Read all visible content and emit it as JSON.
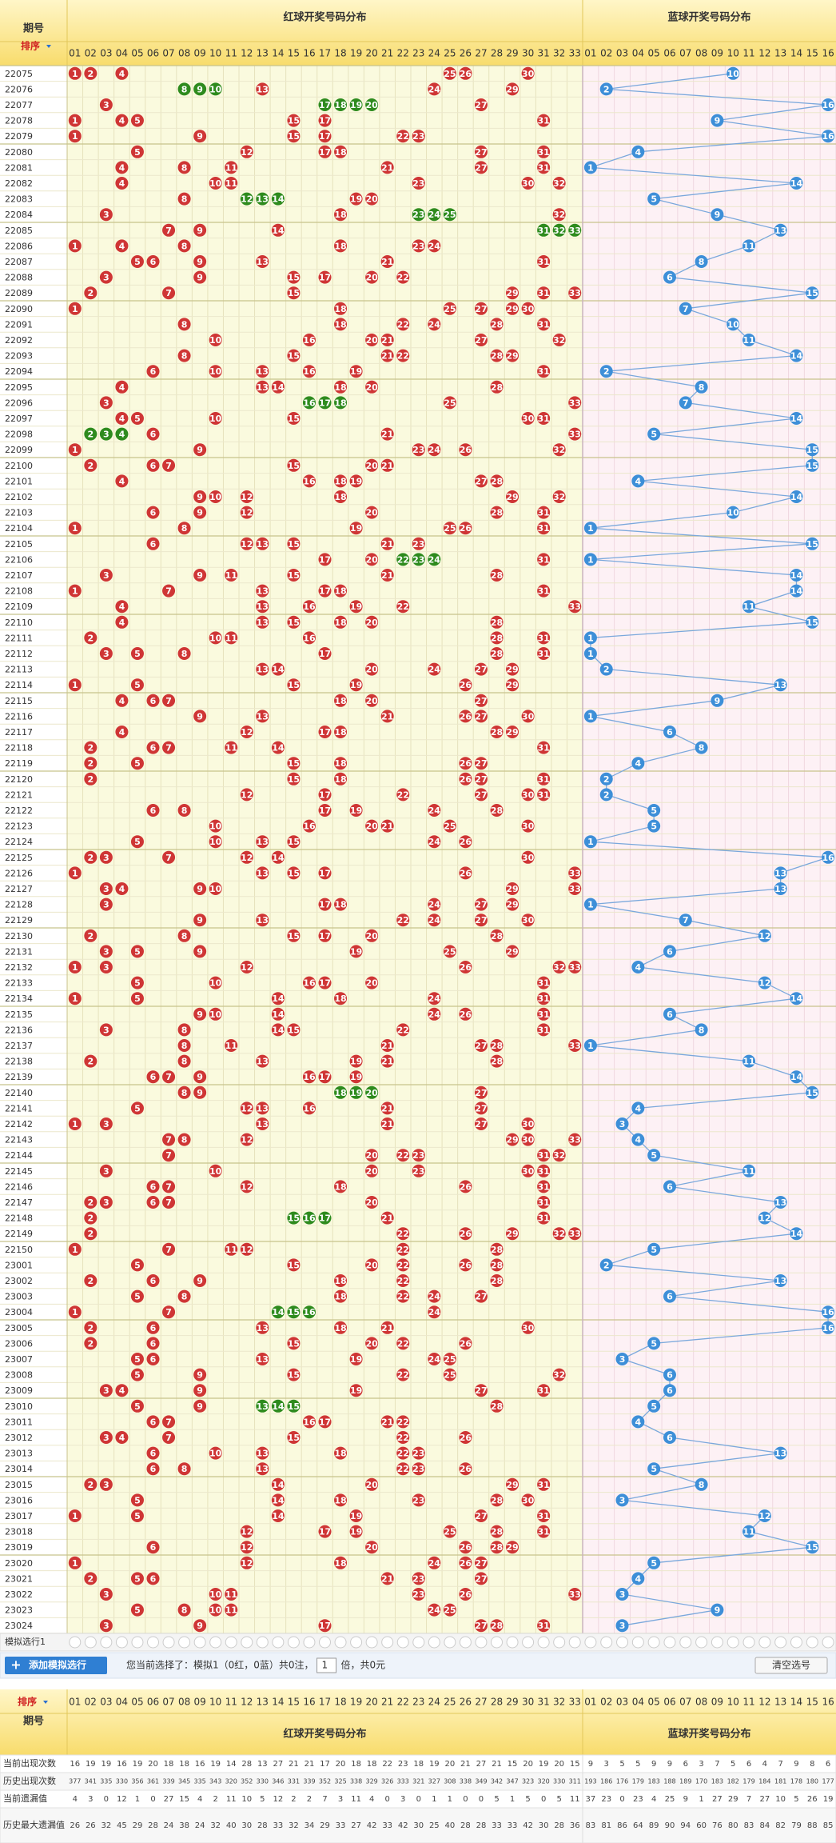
{
  "header": {
    "period_label": "期号",
    "sort_label": "排序",
    "red_title": "红球开奖号码分布",
    "blue_title": "蓝球开奖号码分布",
    "red_numbers": [
      "01",
      "02",
      "03",
      "04",
      "05",
      "06",
      "07",
      "08",
      "09",
      "10",
      "11",
      "12",
      "13",
      "14",
      "15",
      "16",
      "17",
      "18",
      "19",
      "20",
      "21",
      "22",
      "23",
      "24",
      "25",
      "26",
      "27",
      "28",
      "29",
      "30",
      "31",
      "32",
      "33"
    ],
    "blue_numbers": [
      "01",
      "02",
      "03",
      "04",
      "05",
      "06",
      "07",
      "08",
      "09",
      "10",
      "11",
      "12",
      "13",
      "14",
      "15",
      "16"
    ]
  },
  "draws": [
    {
      "period": "22075",
      "red": [
        1,
        2,
        4,
        25,
        26,
        30
      ],
      "blue": 10
    },
    {
      "period": "22076",
      "red": [
        8,
        9,
        10,
        13,
        24,
        29
      ],
      "blue": 2
    },
    {
      "period": "22077",
      "red": [
        3,
        17,
        18,
        19,
        20,
        27
      ],
      "blue": 16
    },
    {
      "period": "22078",
      "red": [
        1,
        4,
        5,
        15,
        17,
        31
      ],
      "blue": 9
    },
    {
      "period": "22079",
      "red": [
        1,
        9,
        15,
        17,
        22,
        23
      ],
      "blue": 16
    },
    {
      "period": "22080",
      "red": [
        5,
        12,
        17,
        18,
        27,
        31
      ],
      "blue": 4
    },
    {
      "period": "22081",
      "red": [
        4,
        8,
        11,
        21,
        27,
        31
      ],
      "blue": 1
    },
    {
      "period": "22082",
      "red": [
        4,
        10,
        11,
        23,
        30,
        32
      ],
      "blue": 14
    },
    {
      "period": "22083",
      "red": [
        8,
        12,
        13,
        14,
        19,
        20
      ],
      "blue": 5
    },
    {
      "period": "22084",
      "red": [
        3,
        18,
        23,
        24,
        25,
        32
      ],
      "blue": 9
    },
    {
      "period": "22085",
      "red": [
        7,
        9,
        14,
        31,
        32,
        33
      ],
      "blue": 13
    },
    {
      "period": "22086",
      "red": [
        1,
        4,
        8,
        18,
        23,
        24
      ],
      "blue": 11
    },
    {
      "period": "22087",
      "red": [
        5,
        6,
        9,
        13,
        21,
        31
      ],
      "blue": 8
    },
    {
      "period": "22088",
      "red": [
        3,
        9,
        15,
        17,
        20,
        22
      ],
      "blue": 6
    },
    {
      "period": "22089",
      "red": [
        2,
        7,
        15,
        29,
        31,
        33
      ],
      "blue": 15
    },
    {
      "period": "22090",
      "red": [
        1,
        18,
        25,
        27,
        29,
        30
      ],
      "blue": 7
    },
    {
      "period": "22091",
      "red": [
        8,
        18,
        22,
        24,
        28,
        31
      ],
      "blue": 10
    },
    {
      "period": "22092",
      "red": [
        10,
        16,
        20,
        21,
        27,
        32
      ],
      "blue": 11
    },
    {
      "period": "22093",
      "red": [
        8,
        15,
        21,
        22,
        28,
        29
      ],
      "blue": 14
    },
    {
      "period": "22094",
      "red": [
        6,
        10,
        13,
        16,
        19,
        31
      ],
      "blue": 2
    },
    {
      "period": "22095",
      "red": [
        4,
        13,
        14,
        18,
        20,
        28
      ],
      "blue": 8
    },
    {
      "period": "22096",
      "red": [
        3,
        16,
        17,
        18,
        25,
        33
      ],
      "blue": 7
    },
    {
      "period": "22097",
      "red": [
        4,
        5,
        10,
        15,
        30,
        31
      ],
      "blue": 14
    },
    {
      "period": "22098",
      "red": [
        2,
        3,
        4,
        6,
        21,
        33
      ],
      "blue": 5
    },
    {
      "period": "22099",
      "red": [
        1,
        9,
        23,
        24,
        26,
        32
      ],
      "blue": 15
    },
    {
      "period": "22100",
      "red": [
        2,
        6,
        7,
        15,
        20,
        21
      ],
      "blue": 15
    },
    {
      "period": "22101",
      "red": [
        4,
        16,
        18,
        19,
        27,
        28
      ],
      "blue": 4
    },
    {
      "period": "22102",
      "red": [
        9,
        10,
        12,
        18,
        29,
        32
      ],
      "blue": 14
    },
    {
      "period": "22103",
      "red": [
        6,
        9,
        12,
        20,
        28,
        31
      ],
      "blue": 10
    },
    {
      "period": "22104",
      "red": [
        1,
        8,
        19,
        25,
        26,
        31
      ],
      "blue": 1
    },
    {
      "period": "22105",
      "red": [
        6,
        12,
        13,
        15,
        21,
        23
      ],
      "blue": 15
    },
    {
      "period": "22106",
      "red": [
        17,
        20,
        22,
        23,
        24,
        31
      ],
      "blue": 1
    },
    {
      "period": "22107",
      "red": [
        3,
        9,
        11,
        15,
        21,
        28
      ],
      "blue": 14
    },
    {
      "period": "22108",
      "red": [
        1,
        7,
        13,
        17,
        18,
        31
      ],
      "blue": 14
    },
    {
      "period": "22109",
      "red": [
        4,
        13,
        16,
        19,
        22,
        33
      ],
      "blue": 11
    },
    {
      "period": "22110",
      "red": [
        4,
        13,
        15,
        18,
        20,
        28
      ],
      "blue": 15
    },
    {
      "period": "22111",
      "red": [
        2,
        10,
        11,
        16,
        28,
        31
      ],
      "blue": 1
    },
    {
      "period": "22112",
      "red": [
        3,
        5,
        8,
        17,
        28,
        31
      ],
      "blue": 1
    },
    {
      "period": "22113",
      "red": [
        13,
        14,
        20,
        24,
        27,
        29
      ],
      "blue": 2
    },
    {
      "period": "22114",
      "red": [
        1,
        5,
        15,
        19,
        26,
        29
      ],
      "blue": 13
    },
    {
      "period": "22115",
      "red": [
        4,
        6,
        7,
        18,
        20,
        27
      ],
      "blue": 9
    },
    {
      "period": "22116",
      "red": [
        9,
        13,
        21,
        26,
        27,
        30
      ],
      "blue": 1
    },
    {
      "period": "22117",
      "red": [
        4,
        12,
        17,
        18,
        28,
        29
      ],
      "blue": 6
    },
    {
      "period": "22118",
      "red": [
        2,
        6,
        7,
        11,
        14,
        31
      ],
      "blue": 8
    },
    {
      "period": "22119",
      "red": [
        2,
        5,
        15,
        18,
        26,
        27
      ],
      "blue": 4
    },
    {
      "period": "22120",
      "red": [
        2,
        15,
        18,
        26,
        27,
        31
      ],
      "blue": 2
    },
    {
      "period": "22121",
      "red": [
        12,
        17,
        22,
        27,
        30,
        31
      ],
      "blue": 2
    },
    {
      "period": "22122",
      "red": [
        6,
        8,
        17,
        19,
        24,
        28
      ],
      "blue": 5
    },
    {
      "period": "22123",
      "red": [
        10,
        16,
        20,
        21,
        25,
        30
      ],
      "blue": 5
    },
    {
      "period": "22124",
      "red": [
        5,
        10,
        13,
        15,
        24,
        26
      ],
      "blue": 1
    },
    {
      "period": "22125",
      "red": [
        2,
        3,
        7,
        12,
        14,
        30
      ],
      "blue": 16
    },
    {
      "period": "22126",
      "red": [
        1,
        13,
        15,
        17,
        26,
        33
      ],
      "blue": 13
    },
    {
      "period": "22127",
      "red": [
        3,
        4,
        9,
        10,
        29,
        33
      ],
      "blue": 13
    },
    {
      "period": "22128",
      "red": [
        3,
        17,
        18,
        24,
        27,
        29
      ],
      "blue": 1
    },
    {
      "period": "22129",
      "red": [
        9,
        13,
        22,
        24,
        27,
        30
      ],
      "blue": 7
    },
    {
      "period": "22130",
      "red": [
        2,
        8,
        15,
        17,
        20,
        28
      ],
      "blue": 12
    },
    {
      "period": "22131",
      "red": [
        3,
        5,
        9,
        19,
        25,
        29
      ],
      "blue": 6
    },
    {
      "period": "22132",
      "red": [
        1,
        3,
        12,
        26,
        32,
        33
      ],
      "blue": 4
    },
    {
      "period": "22133",
      "red": [
        5,
        10,
        16,
        17,
        20,
        31
      ],
      "blue": 12
    },
    {
      "period": "22134",
      "red": [
        1,
        5,
        14,
        18,
        24,
        31
      ],
      "blue": 14
    },
    {
      "period": "22135",
      "red": [
        9,
        10,
        14,
        24,
        26,
        31
      ],
      "blue": 6
    },
    {
      "period": "22136",
      "red": [
        3,
        8,
        14,
        15,
        22,
        31
      ],
      "blue": 8
    },
    {
      "period": "22137",
      "red": [
        8,
        11,
        21,
        27,
        28,
        33
      ],
      "blue": 1
    },
    {
      "period": "22138",
      "red": [
        2,
        8,
        13,
        19,
        21,
        28
      ],
      "blue": 11
    },
    {
      "period": "22139",
      "red": [
        6,
        7,
        9,
        16,
        17,
        19
      ],
      "blue": 14
    },
    {
      "period": "22140",
      "red": [
        8,
        9,
        18,
        19,
        20,
        27
      ],
      "blue": 15
    },
    {
      "period": "22141",
      "red": [
        5,
        12,
        13,
        16,
        21,
        27
      ],
      "blue": 4
    },
    {
      "period": "22142",
      "red": [
        1,
        3,
        13,
        21,
        27,
        30
      ],
      "blue": 3
    },
    {
      "period": "22143",
      "red": [
        7,
        8,
        12,
        29,
        30,
        33
      ],
      "blue": 4
    },
    {
      "period": "22144",
      "red": [
        7,
        20,
        22,
        23,
        31,
        32
      ],
      "blue": 5
    },
    {
      "period": "22145",
      "red": [
        3,
        10,
        20,
        23,
        30,
        31
      ],
      "blue": 11
    },
    {
      "period": "22146",
      "red": [
        6,
        7,
        12,
        18,
        26,
        31
      ],
      "blue": 6
    },
    {
      "period": "22147",
      "red": [
        2,
        3,
        6,
        7,
        20,
        31
      ],
      "blue": 13
    },
    {
      "period": "22148",
      "red": [
        2,
        15,
        16,
        17,
        21,
        31
      ],
      "blue": 12
    },
    {
      "period": "22149",
      "red": [
        2,
        22,
        26,
        29,
        32,
        33
      ],
      "blue": 14
    },
    {
      "period": "22150",
      "red": [
        1,
        7,
        11,
        12,
        22,
        28
      ],
      "blue": 5
    },
    {
      "period": "23001",
      "red": [
        5,
        15,
        20,
        22,
        26,
        28
      ],
      "blue": 2
    },
    {
      "period": "23002",
      "red": [
        2,
        6,
        9,
        18,
        22,
        28
      ],
      "blue": 13
    },
    {
      "period": "23003",
      "red": [
        5,
        8,
        18,
        22,
        24,
        27
      ],
      "blue": 6
    },
    {
      "period": "23004",
      "red": [
        1,
        7,
        14,
        15,
        16,
        24
      ],
      "blue": 16
    },
    {
      "period": "23005",
      "red": [
        2,
        6,
        13,
        18,
        21,
        30
      ],
      "blue": 16
    },
    {
      "period": "23006",
      "red": [
        2,
        6,
        15,
        20,
        22,
        26
      ],
      "blue": 5
    },
    {
      "period": "23007",
      "red": [
        5,
        6,
        13,
        19,
        24,
        25
      ],
      "blue": 3
    },
    {
      "period": "23008",
      "red": [
        5,
        9,
        15,
        22,
        25,
        32
      ],
      "blue": 6
    },
    {
      "period": "23009",
      "red": [
        3,
        4,
        9,
        19,
        27,
        31
      ],
      "blue": 6
    },
    {
      "period": "23010",
      "red": [
        5,
        9,
        13,
        14,
        15,
        28
      ],
      "blue": 5
    },
    {
      "period": "23011",
      "red": [
        6,
        7,
        16,
        17,
        21,
        22
      ],
      "blue": 4
    },
    {
      "period": "23012",
      "red": [
        3,
        4,
        7,
        15,
        22,
        26
      ],
      "blue": 6
    },
    {
      "period": "23013",
      "red": [
        6,
        10,
        13,
        18,
        22,
        23
      ],
      "blue": 13
    },
    {
      "period": "23014",
      "red": [
        6,
        8,
        13,
        22,
        23,
        26
      ],
      "blue": 5
    },
    {
      "period": "23015",
      "red": [
        2,
        3,
        14,
        20,
        29,
        31
      ],
      "blue": 8
    },
    {
      "period": "23016",
      "red": [
        5,
        14,
        18,
        23,
        28,
        30
      ],
      "blue": 3
    },
    {
      "period": "23017",
      "red": [
        1,
        5,
        14,
        19,
        27,
        31
      ],
      "blue": 12
    },
    {
      "period": "23018",
      "red": [
        12,
        17,
        19,
        25,
        28,
        31
      ],
      "blue": 11
    },
    {
      "period": "23019",
      "red": [
        6,
        12,
        20,
        26,
        28,
        29
      ],
      "blue": 15
    },
    {
      "period": "23020",
      "red": [
        1,
        12,
        18,
        24,
        26,
        27
      ],
      "blue": 5
    },
    {
      "period": "23021",
      "red": [
        2,
        5,
        6,
        21,
        23,
        27
      ],
      "blue": 4
    },
    {
      "period": "23022",
      "red": [
        3,
        10,
        11,
        23,
        26,
        33
      ],
      "blue": 3
    },
    {
      "period": "23023",
      "red": [
        5,
        8,
        10,
        11,
        24,
        25
      ],
      "blue": 9
    },
    {
      "period": "23024",
      "red": [
        3,
        9,
        17,
        27,
        28,
        31
      ],
      "blue": 3
    }
  ],
  "simulation": {
    "row_label": "模拟选行1",
    "add_button": "添加模拟选行",
    "status": "您当前选择了：模拟1（0红，0蓝）共0注，",
    "multiple": "1",
    "cost": "倍，共0元",
    "clear_button": "清空选号"
  },
  "stats": [
    {
      "label": "当前出现次数",
      "values": [
        16,
        19,
        19,
        16,
        19,
        20,
        18,
        18,
        16,
        19,
        14,
        28,
        13,
        27,
        21,
        21,
        17,
        20,
        18,
        18,
        22,
        23,
        18,
        19,
        20,
        21,
        27,
        21,
        15,
        20,
        19,
        20,
        15,
        9,
        3,
        5,
        5,
        9,
        9,
        6,
        3,
        7,
        5,
        6,
        4,
        7,
        9,
        8,
        6
      ]
    },
    {
      "label": "历史出现次数",
      "values": [
        377,
        341,
        335,
        330,
        356,
        361,
        339,
        345,
        335,
        343,
        320,
        352,
        330,
        346,
        331,
        339,
        352,
        325,
        338,
        329,
        326,
        333,
        321,
        327,
        308,
        338,
        349,
        342,
        347,
        323,
        320,
        330,
        311,
        193,
        186,
        176,
        179,
        183,
        188,
        189,
        170,
        183,
        182,
        179,
        184,
        181,
        178,
        180,
        177
      ]
    },
    {
      "label": "当前遗漏值",
      "values": [
        4,
        3,
        0,
        12,
        1,
        0,
        27,
        15,
        4,
        2,
        11,
        10,
        5,
        12,
        2,
        2,
        7,
        3,
        11,
        4,
        0,
        3,
        0,
        1,
        1,
        0,
        0,
        5,
        1,
        5,
        0,
        5,
        11,
        37,
        23,
        0,
        23,
        4,
        25,
        9,
        1,
        27,
        29,
        7,
        27,
        10,
        5,
        26,
        19
      ]
    },
    {
      "label": "历史最大遗漏值",
      "values": [
        26,
        26,
        32,
        45,
        29,
        28,
        24,
        38,
        24,
        32,
        40,
        30,
        28,
        33,
        32,
        34,
        29,
        33,
        27,
        42,
        33,
        42,
        30,
        25,
        40,
        28,
        28,
        33,
        33,
        42,
        30,
        28,
        36,
        83,
        81,
        86,
        64,
        89,
        90,
        94,
        60,
        76,
        80,
        83,
        84,
        82,
        79,
        88,
        85
      ]
    }
  ]
}
